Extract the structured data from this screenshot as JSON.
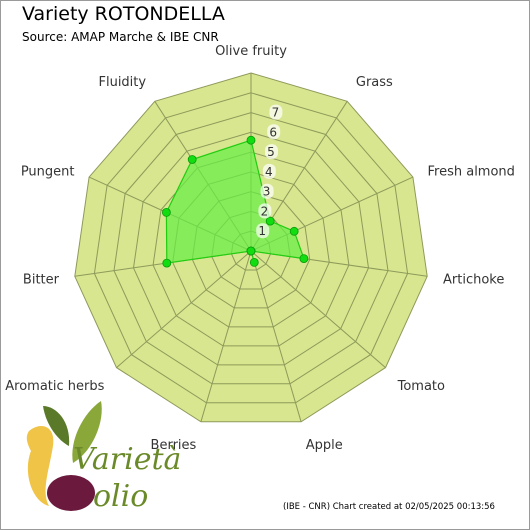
{
  "header": {
    "title": "Variety ROTONDELLA",
    "subtitle": "Source: AMAP Marche & IBE CNR"
  },
  "footer": {
    "credit": "(IBE - CNR) Chart created at 02/05/2025 00:13:56"
  },
  "logo": {
    "word1": "Varietà",
    "word2": "olio"
  },
  "colors": {
    "ring_fill": "#d7e68f",
    "ring_stroke": "#8e9a5a",
    "series_fill": "#66ee44",
    "series_stroke": "#22cc11",
    "point": "#11dd11"
  },
  "chart_data": {
    "type": "radar",
    "title": "Variety ROTONDELLA",
    "subtitle": "Source: AMAP Marche & IBE CNR",
    "categories": [
      "Olive fruity",
      "Grass",
      "Fresh almond",
      "Artichoke",
      "Tomato",
      "Apple",
      "Berries",
      "Aromatic herbs",
      "Bitter",
      "Pungent",
      "Fluidity"
    ],
    "values": [
      5.6,
      1.8,
      2.4,
      2.7,
      0,
      0.6,
      0,
      0,
      4.3,
      4.7,
      5.5
    ],
    "rlim": [
      0,
      9
    ],
    "ticks": [
      1,
      2,
      3,
      4,
      5,
      6,
      7
    ],
    "grid": true
  }
}
